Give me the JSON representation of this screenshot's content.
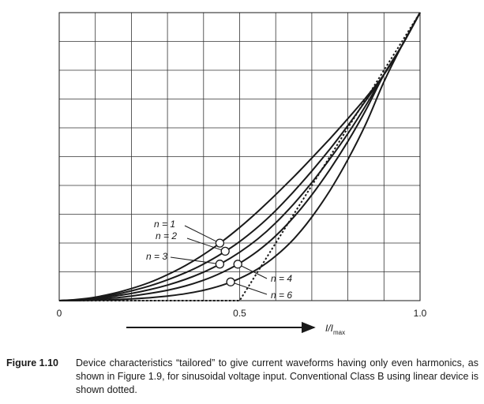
{
  "chart_data": {
    "type": "line",
    "xlabel": "I/Imax",
    "xlabel_main": "I/I",
    "xlabel_sub": "max",
    "xticks": [
      "0",
      "0.5",
      "1.0"
    ],
    "xlim": [
      0,
      1
    ],
    "ylim": [
      0,
      1
    ],
    "grid": true,
    "series": [
      {
        "name": "n=1",
        "x": [
          0,
          0.05,
          0.1,
          0.15,
          0.2,
          0.25,
          0.3,
          0.35,
          0.4,
          0.45,
          0.5,
          0.55,
          0.6,
          0.65,
          0.7,
          0.75,
          0.8,
          0.85,
          0.9,
          0.95,
          1.0
        ],
        "y": [
          0,
          0.004,
          0.012,
          0.025,
          0.042,
          0.063,
          0.09,
          0.122,
          0.16,
          0.204,
          0.254,
          0.309,
          0.368,
          0.43,
          0.495,
          0.562,
          0.632,
          0.705,
          0.785,
          0.886,
          1.0
        ]
      },
      {
        "name": "n=2",
        "x": [
          0,
          0.05,
          0.1,
          0.15,
          0.2,
          0.25,
          0.3,
          0.35,
          0.4,
          0.45,
          0.5,
          0.55,
          0.6,
          0.65,
          0.7,
          0.75,
          0.8,
          0.85,
          0.9,
          0.95,
          1.0
        ],
        "y": [
          0,
          0.003,
          0.01,
          0.02,
          0.034,
          0.051,
          0.072,
          0.097,
          0.127,
          0.163,
          0.205,
          0.255,
          0.313,
          0.379,
          0.45,
          0.526,
          0.608,
          0.695,
          0.785,
          0.886,
          1.0
        ]
      },
      {
        "name": "n=3",
        "x": [
          0,
          0.05,
          0.1,
          0.15,
          0.2,
          0.25,
          0.3,
          0.35,
          0.4,
          0.45,
          0.5,
          0.55,
          0.6,
          0.65,
          0.7,
          0.75,
          0.8,
          0.85,
          0.9,
          0.95,
          1.0
        ],
        "y": [
          0,
          0.002,
          0.007,
          0.015,
          0.025,
          0.038,
          0.054,
          0.074,
          0.099,
          0.13,
          0.168,
          0.214,
          0.27,
          0.336,
          0.41,
          0.492,
          0.58,
          0.678,
          0.785,
          0.886,
          1.0
        ]
      },
      {
        "name": "n=4",
        "x": [
          0,
          0.05,
          0.1,
          0.15,
          0.2,
          0.25,
          0.3,
          0.35,
          0.4,
          0.45,
          0.5,
          0.55,
          0.6,
          0.65,
          0.7,
          0.75,
          0.8,
          0.85,
          0.9,
          0.95,
          1.0
        ],
        "y": [
          0,
          0.001,
          0.004,
          0.009,
          0.016,
          0.025,
          0.036,
          0.051,
          0.071,
          0.097,
          0.13,
          0.172,
          0.225,
          0.29,
          0.367,
          0.455,
          0.553,
          0.662,
          0.785,
          0.886,
          1.0
        ]
      },
      {
        "name": "n=6",
        "x": [
          0,
          0.05,
          0.1,
          0.15,
          0.2,
          0.25,
          0.3,
          0.35,
          0.4,
          0.45,
          0.5,
          0.55,
          0.6,
          0.65,
          0.7,
          0.75,
          0.8,
          0.85,
          0.9,
          0.95,
          1.0
        ],
        "y": [
          0,
          0.0,
          0.001,
          0.003,
          0.006,
          0.01,
          0.016,
          0.024,
          0.036,
          0.053,
          0.077,
          0.11,
          0.155,
          0.214,
          0.29,
          0.382,
          0.49,
          0.614,
          0.76,
          0.886,
          1.0
        ]
      },
      {
        "name": "Class B",
        "style": "dotted",
        "x": [
          0,
          0.25,
          0.5,
          0.75,
          1.0
        ],
        "y": [
          0,
          0,
          0,
          0.5,
          1.0
        ]
      }
    ],
    "markers": [
      {
        "series": "n=1",
        "x": 0.445
      },
      {
        "series": "n=2",
        "x": 0.46
      },
      {
        "series": "n=3",
        "x": 0.445
      },
      {
        "series": "n=4",
        "x": 0.495
      },
      {
        "series": "n=6",
        "x": 0.475
      }
    ],
    "curve_labels": [
      {
        "series": "n=1",
        "text": "n = 1"
      },
      {
        "series": "n=2",
        "text": "n = 2"
      },
      {
        "series": "n=3",
        "text": "n = 3"
      },
      {
        "series": "n=4",
        "text": "n = 4"
      },
      {
        "series": "n=6",
        "text": "n = 6"
      }
    ]
  },
  "caption": {
    "label": "Figure 1.10",
    "text": "Device characteristics “tailored” to give current waveforms having only even harmonics, as shown in Figure 1.9, for sinusoidal voltage input. Conventional Class B using linear device is shown dotted."
  }
}
